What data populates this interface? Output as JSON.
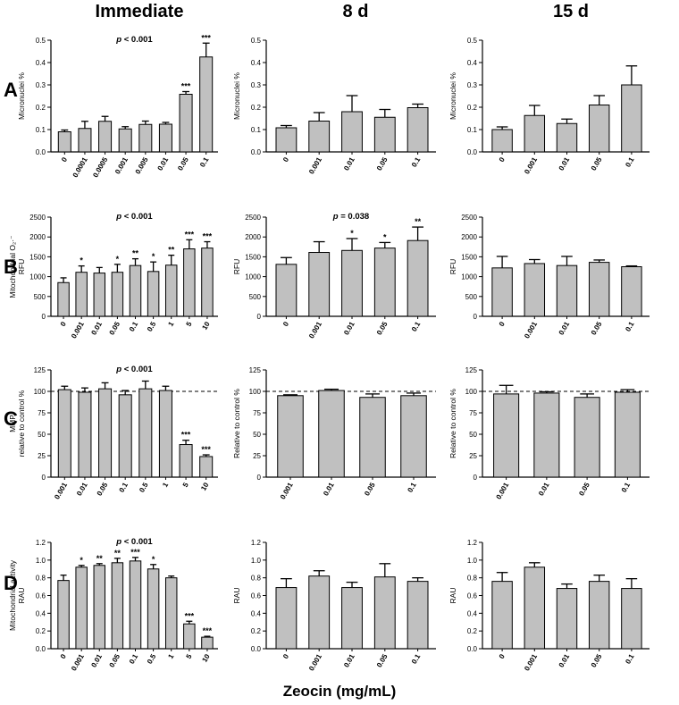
{
  "column_headers": [
    "Immediate",
    "8 d",
    "15 d"
  ],
  "row_labels": [
    "A",
    "B",
    "C",
    "D"
  ],
  "x_axis_title": "Zeocin (mg/mL)",
  "colors": {
    "bar": "#c0c0c0",
    "ink": "#000000"
  },
  "chart_data": [
    {
      "id": "A1",
      "type": "bar",
      "ylabel": [
        "Micronuclei %"
      ],
      "ylim": [
        0,
        0.5
      ],
      "yticks": [
        0,
        0.1,
        0.2,
        0.3,
        0.4,
        0.5
      ],
      "ytick_labels": [
        "0.0",
        "0.1",
        "0.2",
        "0.3",
        "0.4",
        "0.5"
      ],
      "categories": [
        "0",
        "0.0001",
        "0.0005",
        "0.001",
        "0.005",
        "0.01",
        "0.05",
        "0.1"
      ],
      "values": [
        0.09,
        0.105,
        0.137,
        0.103,
        0.123,
        0.124,
        0.258,
        0.425
      ],
      "errors": [
        0.008,
        0.032,
        0.022,
        0.01,
        0.015,
        0.008,
        0.012,
        0.062
      ],
      "significance": [
        "",
        "",
        "",
        "",
        "",
        "",
        "***",
        "***"
      ],
      "p_value": "p < 0.001"
    },
    {
      "id": "A2",
      "type": "bar",
      "ylabel": [
        "Micronuclei %"
      ],
      "ylim": [
        0,
        0.5
      ],
      "yticks": [
        0,
        0.1,
        0.2,
        0.3,
        0.4,
        0.5
      ],
      "ytick_labels": [
        "0.0",
        "0.1",
        "0.2",
        "0.3",
        "0.4",
        "0.5"
      ],
      "categories": [
        "0",
        "0.001",
        "0.01",
        "0.05",
        "0.1"
      ],
      "values": [
        0.108,
        0.138,
        0.18,
        0.155,
        0.198
      ],
      "errors": [
        0.01,
        0.038,
        0.072,
        0.035,
        0.016
      ],
      "significance": [
        "",
        "",
        "",
        "",
        ""
      ],
      "p_value": ""
    },
    {
      "id": "A3",
      "type": "bar",
      "ylabel": [
        "Micronuclei %"
      ],
      "ylim": [
        0,
        0.5
      ],
      "yticks": [
        0,
        0.1,
        0.2,
        0.3,
        0.4,
        0.5
      ],
      "ytick_labels": [
        "0.0",
        "0.1",
        "0.2",
        "0.3",
        "0.4",
        "0.5"
      ],
      "categories": [
        "0",
        "0.001",
        "0.01",
        "0.05",
        "0.1"
      ],
      "values": [
        0.1,
        0.163,
        0.127,
        0.21,
        0.3
      ],
      "errors": [
        0.012,
        0.045,
        0.02,
        0.042,
        0.085
      ],
      "significance": [
        "",
        "",
        "",
        "",
        ""
      ],
      "p_value": ""
    },
    {
      "id": "B1",
      "type": "bar",
      "ylabel": [
        "Mitochondrial O₂·⁻",
        "RFU"
      ],
      "ylim": [
        0,
        2500
      ],
      "yticks": [
        0,
        500,
        1000,
        1500,
        2000,
        2500
      ],
      "ytick_labels": [
        "0",
        "500",
        "1000",
        "1500",
        "2000",
        "2500"
      ],
      "categories": [
        "0",
        "0.001",
        "0.01",
        "0.05",
        "0.1",
        "0.5",
        "1",
        "5",
        "10"
      ],
      "values": [
        850,
        1110,
        1090,
        1110,
        1280,
        1130,
        1290,
        1700,
        1720
      ],
      "errors": [
        120,
        160,
        140,
        200,
        170,
        240,
        250,
        230,
        160
      ],
      "significance": [
        "",
        "*",
        "",
        "*",
        "**",
        "*",
        "**",
        "***",
        "***"
      ],
      "p_value": "p < 0.001"
    },
    {
      "id": "B2",
      "type": "bar",
      "ylabel": [
        "RFU"
      ],
      "ylim": [
        0,
        2500
      ],
      "yticks": [
        0,
        500,
        1000,
        1500,
        2000,
        2500
      ],
      "ytick_labels": [
        "0",
        "500",
        "1000",
        "1500",
        "2000",
        "2500"
      ],
      "categories": [
        "0",
        "0.001",
        "0.01",
        "0.05",
        "0.1"
      ],
      "values": [
        1310,
        1610,
        1660,
        1720,
        1910
      ],
      "errors": [
        170,
        270,
        300,
        140,
        340
      ],
      "significance": [
        "",
        "",
        "*",
        "*",
        "**"
      ],
      "p_value": "p = 0.038"
    },
    {
      "id": "B3",
      "type": "bar",
      "ylabel": [
        "RFU"
      ],
      "ylim": [
        0,
        2500
      ],
      "yticks": [
        0,
        500,
        1000,
        1500,
        2000,
        2500
      ],
      "ytick_labels": [
        "0",
        "500",
        "1000",
        "1500",
        "2000",
        "2500"
      ],
      "categories": [
        "0",
        "0.001",
        "0.01",
        "0.05",
        "0.1"
      ],
      "values": [
        1220,
        1330,
        1280,
        1360,
        1250
      ],
      "errors": [
        290,
        100,
        230,
        60,
        20
      ],
      "significance": [
        "",
        "",
        "",
        "",
        ""
      ],
      "p_value": ""
    },
    {
      "id": "C1",
      "type": "bar",
      "ylabel": [
        "MMP",
        "relative to control %"
      ],
      "ylim": [
        0,
        125
      ],
      "yticks": [
        0,
        25,
        50,
        75,
        100,
        125
      ],
      "ytick_labels": [
        "0",
        "25",
        "50",
        "75",
        "100",
        "125"
      ],
      "categories": [
        "0.001",
        "0.01",
        "0.05",
        "0.1",
        "0.5",
        "1",
        "5",
        "10"
      ],
      "values": [
        102,
        99,
        103,
        96,
        103,
        101,
        38,
        24
      ],
      "errors": [
        4,
        5,
        7,
        5,
        9,
        5,
        5,
        2
      ],
      "significance": [
        "",
        "",
        "",
        "",
        "",
        "",
        "***",
        "***"
      ],
      "p_value": "p < 0.001",
      "reference_line": 100
    },
    {
      "id": "C2",
      "type": "bar",
      "ylabel": [
        "Relative to control %"
      ],
      "ylim": [
        0,
        125
      ],
      "yticks": [
        0,
        25,
        50,
        75,
        100,
        125
      ],
      "ytick_labels": [
        "0",
        "25",
        "50",
        "75",
        "100",
        "125"
      ],
      "categories": [
        "0.001",
        "0.01",
        "0.05",
        "0.1"
      ],
      "values": [
        95,
        101,
        93,
        95
      ],
      "errors": [
        1,
        1.5,
        4,
        3
      ],
      "significance": [
        "",
        "",
        "",
        ""
      ],
      "p_value": "",
      "reference_line": 100
    },
    {
      "id": "C3",
      "type": "bar",
      "ylabel": [
        "Relative to control %"
      ],
      "ylim": [
        0,
        125
      ],
      "yticks": [
        0,
        25,
        50,
        75,
        100,
        125
      ],
      "ytick_labels": [
        "0",
        "25",
        "50",
        "75",
        "100",
        "125"
      ],
      "categories": [
        "0.001",
        "0.01",
        "0.05",
        "0.1"
      ],
      "values": [
        97,
        98,
        93,
        99
      ],
      "errors": [
        10,
        1.5,
        4,
        3
      ],
      "significance": [
        "",
        "",
        "",
        ""
      ],
      "p_value": "",
      "reference_line": 100
    },
    {
      "id": "D1",
      "type": "bar",
      "ylabel": [
        "Mitochondrial activity",
        "RAU"
      ],
      "ylim": [
        0,
        1.2
      ],
      "yticks": [
        0,
        0.2,
        0.4,
        0.6,
        0.8,
        1.0,
        1.2
      ],
      "ytick_labels": [
        "0.0",
        "0.2",
        "0.4",
        "0.6",
        "0.8",
        "1.0",
        "1.2"
      ],
      "categories": [
        "0",
        "0.001",
        "0.01",
        "0.05",
        "0.1",
        "0.5",
        "1",
        "5",
        "10"
      ],
      "values": [
        0.77,
        0.92,
        0.94,
        0.97,
        0.99,
        0.9,
        0.8,
        0.28,
        0.13
      ],
      "errors": [
        0.06,
        0.02,
        0.02,
        0.05,
        0.04,
        0.05,
        0.02,
        0.03,
        0.01
      ],
      "significance": [
        "",
        "*",
        "**",
        "**",
        "***",
        "*",
        "",
        "***",
        "***"
      ],
      "p_value": "p < 0.001"
    },
    {
      "id": "D2",
      "type": "bar",
      "ylabel": [
        "RAU"
      ],
      "ylim": [
        0,
        1.2
      ],
      "yticks": [
        0,
        0.2,
        0.4,
        0.6,
        0.8,
        1.0,
        1.2
      ],
      "ytick_labels": [
        "0.0",
        "0.2",
        "0.4",
        "0.6",
        "0.8",
        "1.0",
        "1.2"
      ],
      "categories": [
        "0",
        "0.001",
        "0.01",
        "0.05",
        "0.1"
      ],
      "values": [
        0.69,
        0.82,
        0.69,
        0.81,
        0.76
      ],
      "errors": [
        0.1,
        0.06,
        0.06,
        0.15,
        0.04
      ],
      "significance": [
        "",
        "",
        "",
        "",
        ""
      ],
      "p_value": ""
    },
    {
      "id": "D3",
      "type": "bar",
      "ylabel": [
        "RAU"
      ],
      "ylim": [
        0,
        1.2
      ],
      "yticks": [
        0,
        0.2,
        0.4,
        0.6,
        0.8,
        1.0,
        1.2
      ],
      "ytick_labels": [
        "0.0",
        "0.2",
        "0.4",
        "0.6",
        "0.8",
        "1.0",
        "1.2"
      ],
      "categories": [
        "0",
        "0.001",
        "0.01",
        "0.05",
        "0.1"
      ],
      "values": [
        0.76,
        0.92,
        0.68,
        0.76,
        0.68
      ],
      "errors": [
        0.1,
        0.05,
        0.05,
        0.07,
        0.11
      ],
      "significance": [
        "",
        "",
        "",
        "",
        ""
      ],
      "p_value": ""
    }
  ]
}
